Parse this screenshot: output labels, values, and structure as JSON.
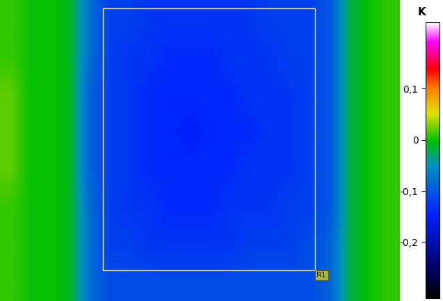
{
  "chart_data": {
    "type": "heatmap",
    "tick_labels": false,
    "annotations": [
      "R1"
    ],
    "cells": [
      [
        0.01,
        0.0,
        0.0,
        -0.01,
        -0.08,
        -0.12,
        -0.12,
        -0.13,
        -0.13,
        -0.13,
        -0.13,
        -0.13,
        -0.13,
        -0.12,
        -0.12,
        -0.12,
        -0.1,
        -0.02,
        0.0,
        0.01
      ],
      [
        0.01,
        0.0,
        0.0,
        -0.01,
        -0.08,
        -0.12,
        -0.13,
        -0.13,
        -0.14,
        -0.14,
        -0.14,
        -0.13,
        -0.13,
        -0.13,
        -0.12,
        -0.12,
        -0.1,
        -0.02,
        0.0,
        0.01
      ],
      [
        0.02,
        0.0,
        0.0,
        -0.01,
        -0.09,
        -0.12,
        -0.13,
        -0.14,
        -0.14,
        -0.14,
        -0.14,
        -0.14,
        -0.13,
        -0.13,
        -0.13,
        -0.12,
        -0.1,
        -0.02,
        0.0,
        0.01
      ],
      [
        0.02,
        0.0,
        0.0,
        -0.01,
        -0.09,
        -0.12,
        -0.13,
        -0.14,
        -0.14,
        -0.15,
        -0.14,
        -0.14,
        -0.14,
        -0.13,
        -0.13,
        -0.12,
        -0.1,
        -0.02,
        0.0,
        0.01
      ],
      [
        0.02,
        0.0,
        0.0,
        -0.01,
        -0.09,
        -0.12,
        -0.13,
        -0.14,
        -0.14,
        -0.14,
        -0.14,
        -0.14,
        -0.13,
        -0.13,
        -0.13,
        -0.12,
        -0.1,
        -0.02,
        0.0,
        0.01
      ],
      [
        0.01,
        0.0,
        0.0,
        -0.01,
        -0.08,
        -0.12,
        -0.13,
        -0.13,
        -0.14,
        -0.14,
        -0.14,
        -0.13,
        -0.13,
        -0.13,
        -0.12,
        -0.12,
        -0.1,
        -0.02,
        0.0,
        0.01
      ],
      [
        0.01,
        0.0,
        0.0,
        -0.01,
        -0.08,
        -0.12,
        -0.12,
        -0.13,
        -0.13,
        -0.13,
        -0.13,
        -0.13,
        -0.12,
        -0.12,
        -0.12,
        -0.11,
        -0.09,
        -0.02,
        0.0,
        0.01
      ],
      [
        0.01,
        0.0,
        0.0,
        -0.01,
        -0.08,
        -0.11,
        -0.11,
        -0.11,
        -0.11,
        -0.11,
        -0.11,
        -0.11,
        -0.11,
        -0.11,
        -0.11,
        -0.11,
        -0.09,
        -0.02,
        0.0,
        0.01
      ]
    ],
    "colorbar": {
      "label": "K",
      "range": [
        -0.31,
        0.23
      ],
      "ticks": [
        {
          "value": 0.1,
          "label": "0,1"
        },
        0,
        {
          "value": -0.1,
          "label": "-0,1"
        },
        {
          "value": -0.2,
          "label": "-0,2"
        }
      ]
    }
  }
}
